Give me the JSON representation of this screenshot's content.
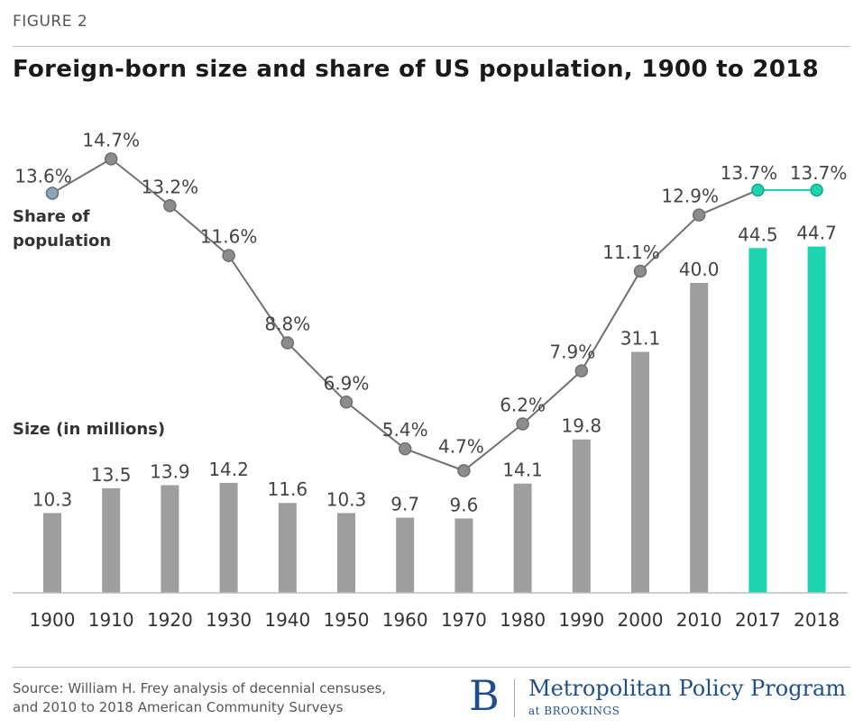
{
  "header": {
    "figure_label": "FIGURE 2",
    "title": "Foreign-born size and share of US population, 1900 to 2018"
  },
  "footer": {
    "source_line1": "Source: William H. Frey analysis of decennial censuses,",
    "source_line2": "and 2010 to 2018 American Community Surveys",
    "brand_letter": "B",
    "brand_name": "Metropolitan Policy Program",
    "brand_sub": "at BROOKINGS"
  },
  "chart_data": {
    "type": "bar",
    "categories": [
      "1900",
      "1910",
      "1920",
      "1930",
      "1940",
      "1950",
      "1960",
      "1970",
      "1980",
      "1990",
      "2000",
      "2010",
      "2017",
      "2018"
    ],
    "series": [
      {
        "name": "Size (in millions)",
        "values": [
          10.3,
          13.5,
          13.9,
          14.2,
          11.6,
          10.3,
          9.7,
          9.6,
          14.1,
          19.8,
          31.1,
          40.0,
          44.5,
          44.7
        ],
        "labels": [
          "10.3",
          "13.5",
          "13.9",
          "14.2",
          "11.6",
          "10.3",
          "9.7",
          "9.6",
          "14.1",
          "19.8",
          "31.1",
          "40.0",
          "44.5",
          "44.7"
        ],
        "type": "bar"
      },
      {
        "name": "Share of population",
        "values": [
          13.6,
          14.7,
          13.2,
          11.6,
          8.8,
          6.9,
          5.4,
          4.7,
          6.2,
          7.9,
          11.1,
          12.9,
          13.7,
          13.7
        ],
        "labels": [
          "13.6%",
          "14.7%",
          "13.2%",
          "11.6%",
          "8.8%",
          "6.9%",
          "5.4%",
          "4.7%",
          "6.2%",
          "7.9%",
          "11.1%",
          "12.9%",
          "13.7%",
          "13.7%"
        ],
        "type": "line"
      }
    ],
    "line_label_lines": [
      "Share of",
      "population"
    ],
    "bar_label": "Size (in millions)",
    "highlight_categories": [
      "2017",
      "2018"
    ],
    "colors": {
      "bar": "#9e9e9e",
      "highlight": "#1dd3b0",
      "line": "#707070",
      "marker": "#8c8c8c",
      "first_marker": "#90a4b8",
      "label": "#444444"
    }
  }
}
